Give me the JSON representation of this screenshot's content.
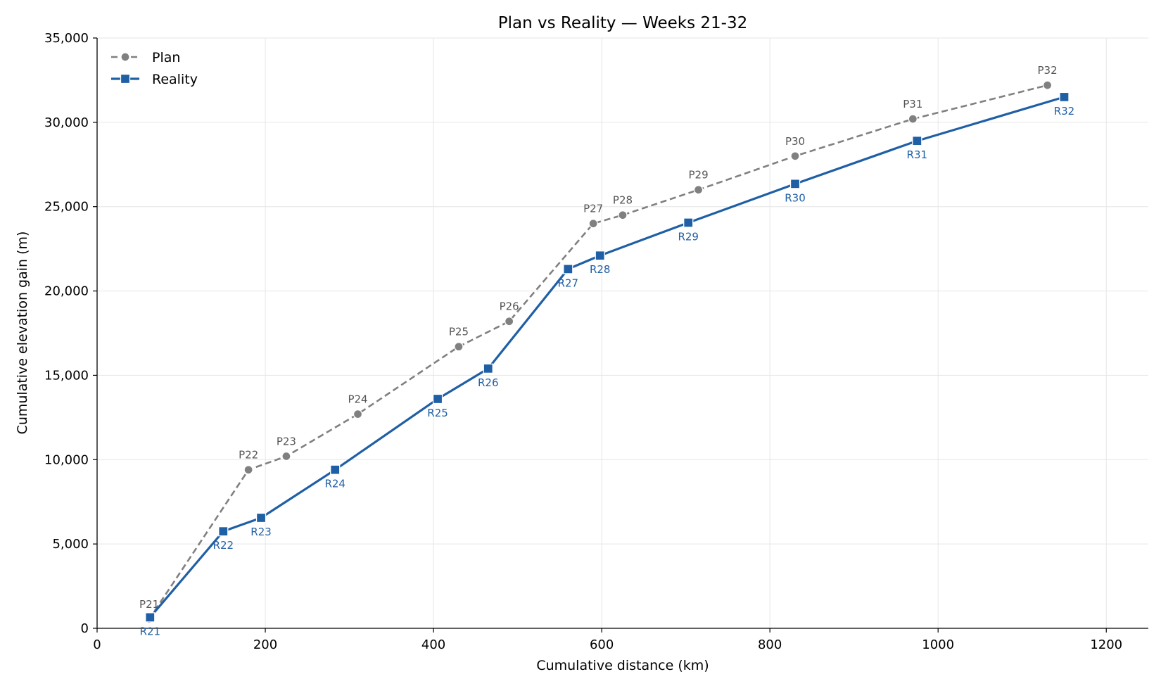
{
  "chart_data": {
    "type": "line",
    "title": "Plan vs Reality — Weeks 21-32",
    "xlabel": "Cumulative distance (km)",
    "ylabel": "Cumulative elevation gain (m)",
    "xlim": [
      0,
      1250
    ],
    "ylim": [
      0,
      35000
    ],
    "x_ticks": [
      0,
      200,
      400,
      600,
      800,
      1000,
      1200
    ],
    "x_tick_labels": [
      "0",
      "200",
      "400",
      "600",
      "800",
      "1000",
      "1200"
    ],
    "y_ticks": [
      0,
      5000,
      10000,
      15000,
      20000,
      25000,
      30000,
      35000
    ],
    "y_tick_labels": [
      "0",
      "5,000",
      "10,000",
      "15,000",
      "20,000",
      "25,000",
      "30,000",
      "35,000"
    ],
    "grid": true,
    "legend_position": "top-left",
    "series": [
      {
        "name": "Plan",
        "color": "#808080",
        "line_style": "dashed",
        "marker": "circle",
        "points": [
          {
            "label": "P21",
            "x": 62,
            "y": 550
          },
          {
            "label": "P22",
            "x": 180,
            "y": 9400
          },
          {
            "label": "P23",
            "x": 225,
            "y": 10200
          },
          {
            "label": "P24",
            "x": 310,
            "y": 12700
          },
          {
            "label": "P25",
            "x": 430,
            "y": 16700
          },
          {
            "label": "P26",
            "x": 490,
            "y": 18200
          },
          {
            "label": "P27",
            "x": 590,
            "y": 24000
          },
          {
            "label": "P28",
            "x": 625,
            "y": 24500
          },
          {
            "label": "P29",
            "x": 715,
            "y": 26000
          },
          {
            "label": "P30",
            "x": 830,
            "y": 28000
          },
          {
            "label": "P31",
            "x": 970,
            "y": 30200
          },
          {
            "label": "P32",
            "x": 1130,
            "y": 32200
          }
        ]
      },
      {
        "name": "Reality",
        "color": "#1f5fa5",
        "line_style": "solid",
        "marker": "square",
        "points": [
          {
            "label": "R21",
            "x": 63,
            "y": 650
          },
          {
            "label": "R22",
            "x": 150,
            "y": 5750
          },
          {
            "label": "R23",
            "x": 195,
            "y": 6550
          },
          {
            "label": "R24",
            "x": 283,
            "y": 9400
          },
          {
            "label": "R25",
            "x": 405,
            "y": 13600
          },
          {
            "label": "R26",
            "x": 465,
            "y": 15400
          },
          {
            "label": "R27",
            "x": 560,
            "y": 21300
          },
          {
            "label": "R28",
            "x": 598,
            "y": 22100
          },
          {
            "label": "R29",
            "x": 703,
            "y": 24050
          },
          {
            "label": "R30",
            "x": 830,
            "y": 26350
          },
          {
            "label": "R31",
            "x": 975,
            "y": 28900
          },
          {
            "label": "R32",
            "x": 1150,
            "y": 31500
          }
        ]
      }
    ]
  }
}
